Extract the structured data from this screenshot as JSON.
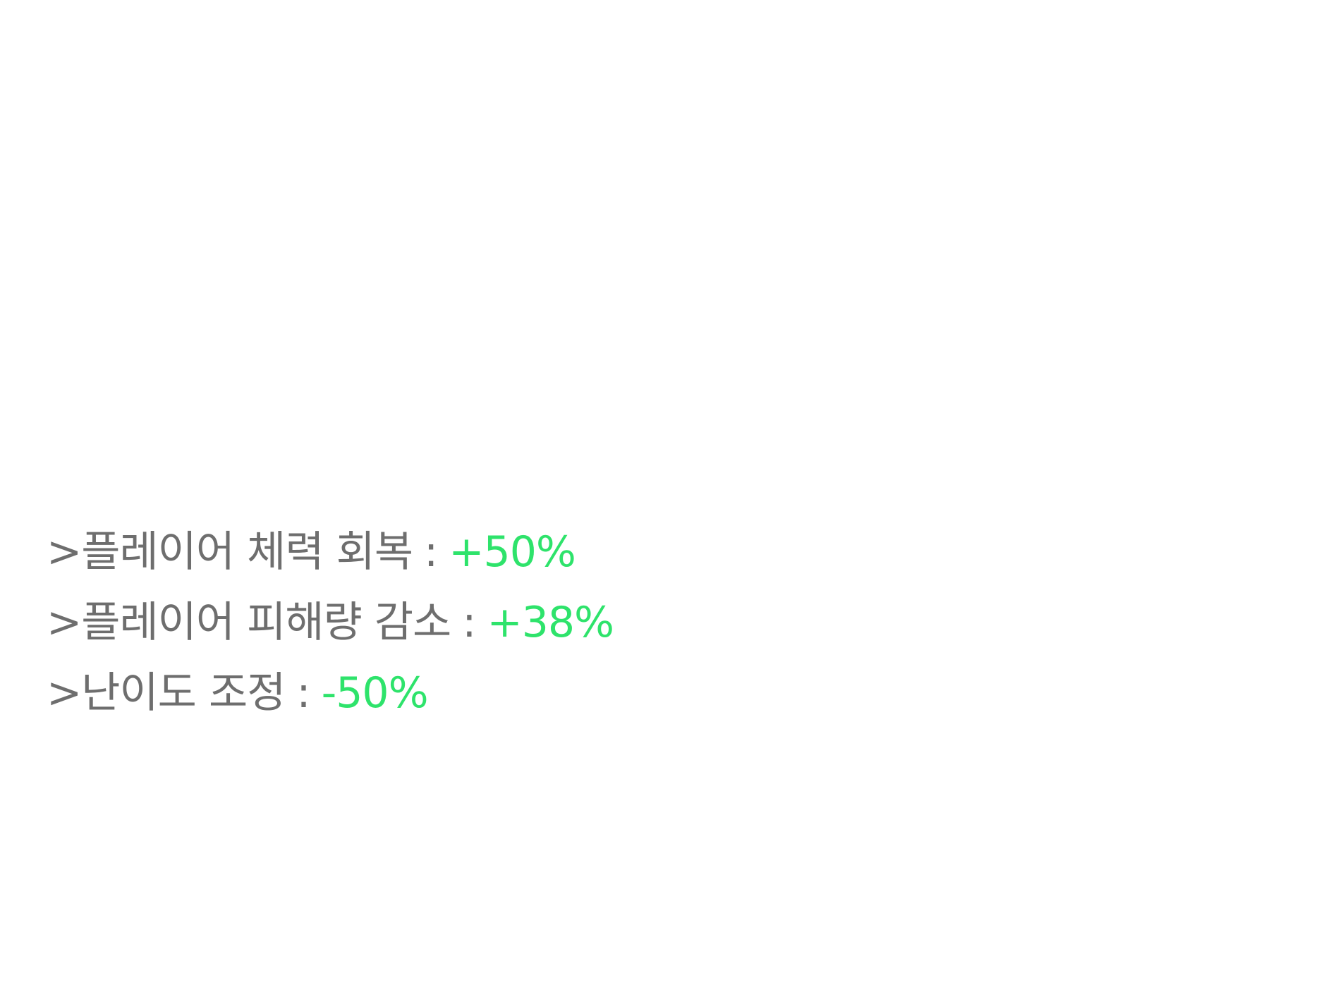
{
  "colors": {
    "background": "#ffffff",
    "label": "#6e6e6e",
    "value": "#2ee36b"
  },
  "stats": [
    {
      "label": ">플레이어 체력 회복",
      "separator": ":",
      "value": "+50%"
    },
    {
      "label": ">플레이어 피해량 감소",
      "separator": ":",
      "value": "+38%"
    },
    {
      "label": ">난이도 조정",
      "separator": ":",
      "value": "-50%"
    }
  ]
}
